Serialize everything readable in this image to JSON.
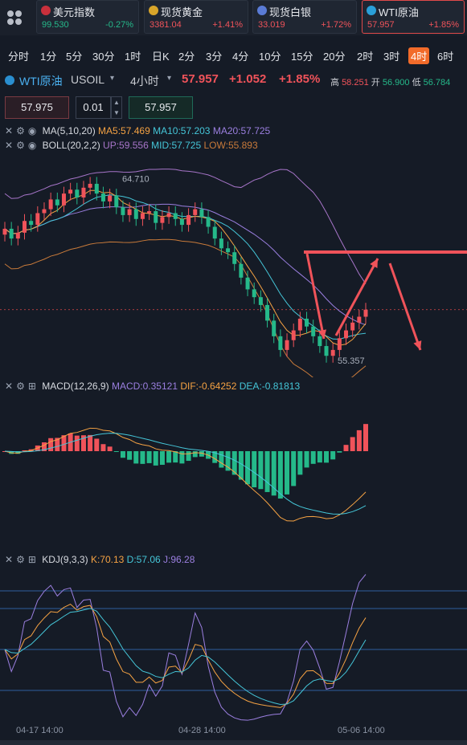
{
  "tickers": [
    {
      "name": "美元指数",
      "price": "99.530",
      "change": "-0.27%",
      "dir": "dn",
      "icon": "us-flag-icon"
    },
    {
      "name": "现货黄金",
      "price": "3381.04",
      "change": "+1.41%",
      "dir": "up",
      "icon": "gold-icon"
    },
    {
      "name": "现货白银",
      "price": "33.019",
      "change": "+1.72%",
      "dir": "up",
      "icon": "silver-icon"
    },
    {
      "name": "WTI原油",
      "price": "57.957",
      "change": "+1.85%",
      "dir": "up",
      "icon": "oil-icon"
    }
  ],
  "periods": [
    "分时",
    "1分",
    "5分",
    "30分",
    "1时",
    "日K",
    "2分",
    "3分",
    "4分",
    "10分",
    "15分",
    "20分",
    "2时",
    "3时",
    "4时",
    "6时"
  ],
  "active_period": "4时",
  "header": {
    "name": "WTI原油",
    "code": "USOIL",
    "period": "4小时",
    "price": "57.957",
    "change": "+1.052",
    "pct": "+1.85%",
    "high_label": "高",
    "high": "58.251",
    "open_label": "开",
    "open": "56.900",
    "low_label": "低",
    "low": "56.784"
  },
  "inputs": {
    "bid": "57.975",
    "lot": "0.01",
    "ask": "57.957"
  },
  "ma": {
    "label": "MA(5,10,20)",
    "ma5": "MA5:57.469",
    "ma10": "MA10:57.203",
    "ma20": "MA20:57.725"
  },
  "boll": {
    "label": "BOLL(20,2,2)",
    "up": "UP:59.556",
    "mid": "MID:57.725",
    "low": "LOW:55.893"
  },
  "macd": {
    "label": "MACD(12,26,9)",
    "macd": "MACD:0.35121",
    "dif": "DIF:-0.64252",
    "dea": "DEA:-0.81813"
  },
  "kdj": {
    "label": "KDJ(9,3,3)",
    "k": "K:70.13",
    "d": "D:57.06",
    "j": "J:96.28"
  },
  "annotations": {
    "max": "64.710",
    "min": "55.357"
  },
  "x_labels": [
    "04-17 14:00",
    "04-28 14:00",
    "05-06 14:00"
  ],
  "colors": {
    "up": "#f0535a",
    "down": "#25b98a",
    "ma5": "#f5a243",
    "ma10": "#45c6d8",
    "ma20": "#9b7fe0",
    "boll_up": "#a775c9",
    "boll_low": "#c87a3a"
  },
  "chart_data": {
    "type": "candlestick",
    "ylim": [
      54.5,
      66
    ],
    "close_series": [
      62.1,
      61.6,
      61.9,
      62.5,
      62.3,
      62.9,
      63.1,
      63.6,
      63.3,
      63.9,
      64.1,
      63.7,
      64.2,
      64.4,
      63.9,
      63.5,
      63.8,
      63.2,
      62.8,
      63.1,
      62.6,
      62.9,
      63.0,
      62.4,
      62.7,
      62.9,
      62.6,
      62.3,
      62.8,
      63.1,
      62.7,
      62.2,
      61.6,
      61.1,
      60.9,
      60.3,
      59.6,
      59.0,
      58.6,
      58.2,
      57.4,
      56.6,
      55.9,
      56.4,
      56.9,
      57.5,
      57.1,
      56.6,
      56.1,
      55.6,
      55.9,
      56.5,
      56.9,
      57.3,
      57.6,
      57.96
    ]
  }
}
